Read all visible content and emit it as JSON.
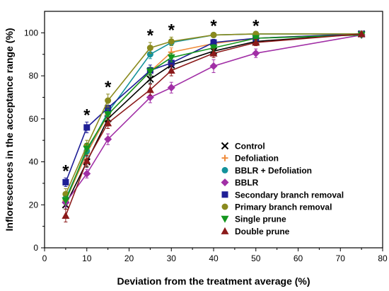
{
  "chart_data": {
    "type": "line",
    "xlabel": "Deviation from the treatment average (%)",
    "ylabel": "Inflorescences in the acceptance range (%)",
    "xlim": [
      0,
      80
    ],
    "ylim": [
      0,
      110
    ],
    "x_ticks": [
      0,
      10,
      20,
      30,
      40,
      50,
      60,
      70,
      80
    ],
    "y_ticks": [
      0,
      20,
      40,
      60,
      80,
      100
    ],
    "x": [
      5,
      10,
      15,
      25,
      30,
      40,
      50,
      75
    ],
    "grid": false,
    "legend_position": "bottom-right",
    "significance_marker": "*",
    "significance_x": [
      5,
      10,
      15,
      25,
      30,
      40,
      50
    ],
    "series": [
      {
        "name": "Control",
        "marker": "x",
        "color": "#000000",
        "values": [
          20,
          40,
          60,
          78.5,
          85,
          91.5,
          96,
          99.5
        ],
        "errors": [
          2,
          2.5,
          2.5,
          2,
          2,
          1.5,
          1,
          0.3
        ]
      },
      {
        "name": "Defoliation",
        "marker": "plus",
        "color": "#f08c3c",
        "values": [
          22,
          44,
          62,
          82,
          91,
          95,
          97.5,
          99.5
        ],
        "errors": [
          2,
          2.5,
          2.5,
          2,
          2,
          1.5,
          1,
          0.3
        ]
      },
      {
        "name": "BBLR + Defoliation",
        "marker": "circle",
        "color": "#13929b",
        "values": [
          23,
          45,
          63,
          90,
          95.5,
          99,
          99.5,
          99.5
        ],
        "errors": [
          2,
          2.5,
          2.5,
          2,
          1.5,
          1,
          0.5,
          0.3
        ]
      },
      {
        "name": "BBLR",
        "marker": "diamond",
        "color": "#a12fa6",
        "values": [
          21,
          34.5,
          50.5,
          70,
          74.5,
          84.5,
          90.5,
          99
        ],
        "errors": [
          2,
          2,
          2.5,
          2.5,
          2.5,
          3,
          2,
          0.5
        ]
      },
      {
        "name": "Secondary branch removal",
        "marker": "square",
        "color": "#1e1e96",
        "values": [
          30.5,
          56,
          65,
          82.5,
          86,
          95.5,
          97.5,
          99.5
        ],
        "errors": [
          2,
          2.5,
          2.5,
          2.5,
          2,
          1.5,
          1,
          0.3
        ]
      },
      {
        "name": "Primary branch removal",
        "marker": "circle",
        "color": "#8a8a1e",
        "values": [
          25,
          47.5,
          68.5,
          93,
          96,
          99,
          99.5,
          99.5
        ],
        "errors": [
          2.5,
          2.5,
          3,
          2.5,
          2,
          1,
          0.5,
          0.3
        ]
      },
      {
        "name": "Single prune",
        "marker": "triangle-down",
        "color": "#14961e",
        "values": [
          22,
          46,
          62,
          82,
          88.5,
          93,
          97.5,
          99
        ],
        "errors": [
          2,
          2.5,
          2.5,
          2,
          2,
          1.5,
          1,
          0.3
        ]
      },
      {
        "name": "Double prune",
        "marker": "triangle-up",
        "color": "#8b1a1a",
        "values": [
          15,
          40.5,
          58,
          73.5,
          82.5,
          90.5,
          95.5,
          99.5
        ],
        "errors": [
          3,
          2.5,
          2.5,
          2.5,
          2.5,
          2,
          1.5,
          0.3
        ]
      }
    ]
  }
}
